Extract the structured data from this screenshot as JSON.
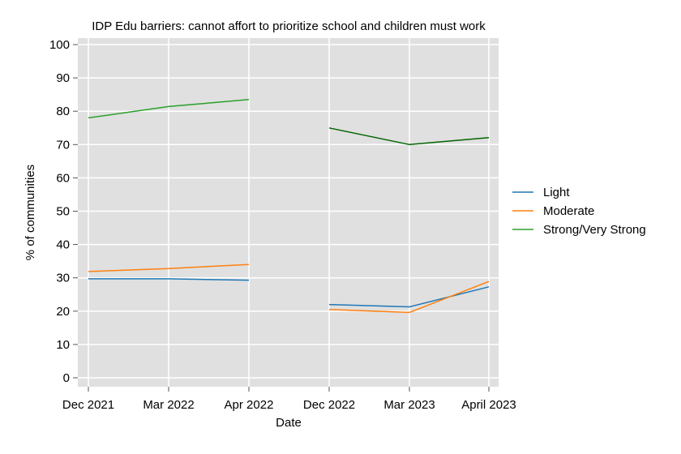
{
  "chart_data": {
    "type": "line",
    "title": "IDP Edu barriers: cannot affort to prioritize school and children must work",
    "xlabel": "Date",
    "ylabel": "% of communities",
    "categories": [
      "Dec 2021",
      "Mar 2022",
      "Apr 2022",
      "Dec 2022",
      "Mar 2023",
      "April 2023"
    ],
    "ylim": [
      0,
      100
    ],
    "yticks": [
      0,
      10,
      20,
      30,
      40,
      50,
      60,
      70,
      80,
      90,
      100
    ],
    "grid": true,
    "legend_position": "right",
    "series": [
      {
        "name": "Light",
        "color": "#1f77b4",
        "segments": [
          {
            "color": "#1f77b4",
            "points": [
              [
                0,
                29.7
              ],
              [
                1,
                29.7
              ],
              [
                2,
                29.3
              ]
            ]
          },
          {
            "color": "#1f77b4",
            "points": [
              [
                3,
                22.0
              ],
              [
                4,
                21.3
              ],
              [
                5,
                27.3
              ]
            ]
          }
        ]
      },
      {
        "name": "Moderate",
        "color": "#ff7f0e",
        "segments": [
          {
            "color": "#ff7f0e",
            "points": [
              [
                0,
                31.9
              ],
              [
                1,
                32.8
              ],
              [
                2,
                34.0
              ]
            ]
          },
          {
            "color": "#ff7f0e",
            "points": [
              [
                3,
                20.5
              ],
              [
                4,
                19.6
              ],
              [
                5,
                28.9
              ]
            ]
          }
        ]
      },
      {
        "name": "Strong/Very Strong",
        "color": "#2ca02c",
        "segments": [
          {
            "color": "#2ca02c",
            "points": [
              [
                0,
                78.0
              ],
              [
                1,
                81.4
              ],
              [
                2,
                83.5
              ]
            ]
          },
          {
            "color": "#006400",
            "points": [
              [
                3,
                75.0
              ],
              [
                4,
                70.0
              ],
              [
                5,
                72.1
              ]
            ]
          }
        ]
      }
    ]
  }
}
